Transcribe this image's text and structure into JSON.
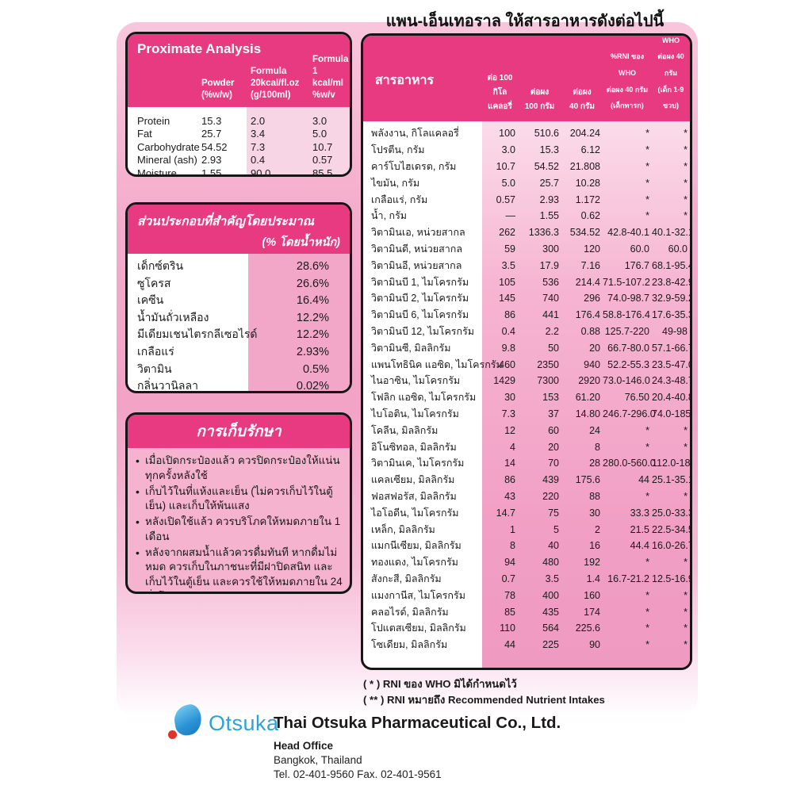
{
  "title": "แพน-เอ็นเทอราล ให้สารอาหารดังต่อไปนี้",
  "proximate": {
    "title": "Proximate Analysis",
    "columns": [
      "Powder\n(%w/w)",
      "Formula\n20kcal/fl.oz\n(g/100ml)",
      "Formula\n1 kcal/ml\n%w/v"
    ],
    "rows": [
      [
        "Protein",
        "15.3",
        "2.0",
        "3.0"
      ],
      [
        "Fat",
        "25.7",
        "3.4",
        "5.0"
      ],
      [
        "Carbohydrate",
        "54.52",
        "7.3",
        "10.7"
      ],
      [
        "Mineral (ash)",
        "2.93",
        "0.4",
        "0.57"
      ],
      [
        "Moisture",
        "1.55",
        "90.0",
        "85.5"
      ]
    ]
  },
  "ingredients": {
    "title": "ส่วนประกอบที่สำคัญโดยประมาณ",
    "subtitle": "(% โดยน้ำหนัก)",
    "items": [
      [
        "เด็กซ์ตริน",
        "28.6%"
      ],
      [
        "ซูโครส",
        "26.6%"
      ],
      [
        "เคซีน",
        "16.4%"
      ],
      [
        "น้ำมันถั่วเหลือง",
        "12.2%"
      ],
      [
        "มีเดียมเชนไตรกลีเซอไรด์",
        "12.2%"
      ],
      [
        "เกลือแร่",
        "2.93%"
      ],
      [
        "วิตามิน",
        "0.5%"
      ],
      [
        "กลิ่นวานิลลา",
        "0.02%"
      ]
    ]
  },
  "storage": {
    "title": "การเก็บรักษา",
    "bullets": [
      "เมื่อเปิดกระป๋องแล้ว ควรปิดกระป๋องให้แน่น ทุกครั้งหลังใช้",
      "เก็บไว้ในที่แห้งและเย็น (ไม่ควรเก็บไว้ในตู้เย็น) และเก็บให้พ้นแสง",
      "หลังเปิดใช้แล้ว ควรบริโภคให้หมดภายใน 1 เดือน",
      "หลังจากผสมน้ำแล้วควรดื่มทันที หากดื่มไม่หมด ควรเก็บในภาชนะที่มีฝาปิดสนิท และเก็บไว้ในตู้เย็น และควรใช้ให้หมดภายใน 24 ชั่วโมง"
    ]
  },
  "nutrients": {
    "title": "สารอาหาร",
    "columns": [
      "ต่อ 100\nกิโลแคลอรี่",
      "ต่อผง\n100 กรัม",
      "ต่อผง\n40 กรัม",
      "%RNI ของ WHO\nต่อผง 40 กรัม\n(เด็กทารก)",
      "%RNI ของ WHO\nต่อผง 40 กรัม\n(เด็ก 1-9 ขวบ)"
    ],
    "rows": [
      [
        "พลังงาน, กิโลแคลอรี่",
        "100",
        "510.6",
        "204.24",
        "*",
        "*"
      ],
      [
        "โปรตีน, กรัม",
        "3.0",
        "15.3",
        "6.12",
        "*",
        "*"
      ],
      [
        "คาร์โบไฮเดรต, กรัม",
        "10.7",
        "54.52",
        "21.808",
        "*",
        "*"
      ],
      [
        "ไขมัน, กรัม",
        "5.0",
        "25.7",
        "10.28",
        "*",
        "*"
      ],
      [
        "เกลือแร่, กรัม",
        "0.57",
        "2.93",
        "1.172",
        "*",
        "*"
      ],
      [
        "น้ำ, กรัม",
        "—",
        "1.55",
        "0.62",
        "*",
        "*"
      ],
      [
        "วิตามินเอ, หน่วยสากล",
        "262",
        "1336.3",
        "534.52",
        "42.8-40.1",
        "40.1-32.1"
      ],
      [
        "วิตามินดี, หน่วยสากล",
        "59",
        "300",
        "120",
        "60.0",
        "60.0"
      ],
      [
        "วิตามินอี, หน่วยสากล",
        "3.5",
        "17.9",
        "7.16",
        "176.7",
        "68.1-95.4"
      ],
      [
        "วิตามินบี 1, ไมโครกรัม",
        "105",
        "536",
        "214.4",
        "71.5-107.2",
        "23.8-42.9"
      ],
      [
        "วิตามินบี 2, ไมโครกรัม",
        "145",
        "740",
        "296",
        "74.0-98.7",
        "32.9-59.2"
      ],
      [
        "วิตามินบี 6, ไมโครกรัม",
        "86",
        "441",
        "176.4",
        "58.8-176.4",
        "17.6-35.3"
      ],
      [
        "วิตามินบี 12, ไมโครกรัม",
        "0.4",
        "2.2",
        "0.88",
        "125.7-220",
        "49-98"
      ],
      [
        "วิตามินซี, มิลลิกรัม",
        "9.8",
        "50",
        "20",
        "66.7-80.0",
        "57.1-66.7"
      ],
      [
        "แพนโทธินิค แอซิด, ไมโครกรัม",
        "460",
        "2350",
        "940",
        "52.2-55.3",
        "23.5-47.0"
      ],
      [
        "ไนอาซิน, ไมโครกรัม",
        "1429",
        "7300",
        "2920",
        "73.0-146.0",
        "24.3-48.7"
      ],
      [
        "โฟลิก แอซิด, ไมโครกรัม",
        "30",
        "153",
        "61.20",
        "76.50",
        "20.4-40.8"
      ],
      [
        "ไบโอติน, ไมโครกรัม",
        "7.3",
        "37",
        "14.80",
        "246.7-296.0",
        "74.0-185.0"
      ],
      [
        "โคลีน, มิลลิกรัม",
        "12",
        "60",
        "24",
        "*",
        "*"
      ],
      [
        "อิโนซิทอล, มิลลิกรัม",
        "4",
        "20",
        "8",
        "*",
        "*"
      ],
      [
        "วิตามินเค, ไมโครกรัม",
        "14",
        "70",
        "28",
        "280.0-560.0",
        "112.0-186.7"
      ],
      [
        "แคลเซียม, มิลลิกรัม",
        "86",
        "439",
        "175.6",
        "44",
        "25.1-35.1"
      ],
      [
        "ฟอสฟอรัส, มิลลิกรัม",
        "43",
        "220",
        "88",
        "*",
        "*"
      ],
      [
        "ไอโอดีน, ไมโครกรัม",
        "14.7",
        "75",
        "30",
        "33.3",
        "25.0-33.3"
      ],
      [
        "เหล็ก, มิลลิกรัม",
        "1",
        "5",
        "2",
        "21.5",
        "22.5-34.5"
      ],
      [
        "แมกนีเซียม, มิลลิกรัม",
        "8",
        "40",
        "16",
        "44.4",
        "16.0-26.7"
      ],
      [
        "ทองแดง, ไมโครกรัม",
        "94",
        "480",
        "192",
        "*",
        "*"
      ],
      [
        "สังกะสี, มิลลิกรัม",
        "0.7",
        "3.5",
        "1.4",
        "16.7-21.2",
        "12.5-16.9"
      ],
      [
        "แมงกานีส, ไมโครกรัม",
        "78",
        "400",
        "160",
        "*",
        "*"
      ],
      [
        "คลอไรด์, มิลลิกรัม",
        "85",
        "435",
        "174",
        "*",
        "*"
      ],
      [
        "โปแตสเซียม, มิลลิกรัม",
        "110",
        "564",
        "225.6",
        "*",
        "*"
      ],
      [
        "โซเดียม, มิลลิกรัม",
        "44",
        "225",
        "90",
        "*",
        "*"
      ]
    ]
  },
  "footnotes": [
    "( * ) RNI ของ WHO มิได้กำหนดไว้",
    "( ** ) RNI  หมายถึง Recommended Nutrient Intakes"
  ],
  "footer": {
    "logo_text": "Otsuka",
    "company": "Thai Otsuka Pharmaceutical Co., Ltd.",
    "office": "Head Office",
    "city": "Bangkok, Thailand",
    "tel": "Tel. 02-401-9560 Fax. 02-401-9561"
  },
  "colors": {
    "header_pink": "#e73a80",
    "panel_light_pink": "#f8d5e5",
    "panel_mid_pink": "#f2a7c8",
    "storage_pink": "#f5b3cf",
    "logo_blue": "#2ba3da",
    "logo_red": "#e23128"
  }
}
